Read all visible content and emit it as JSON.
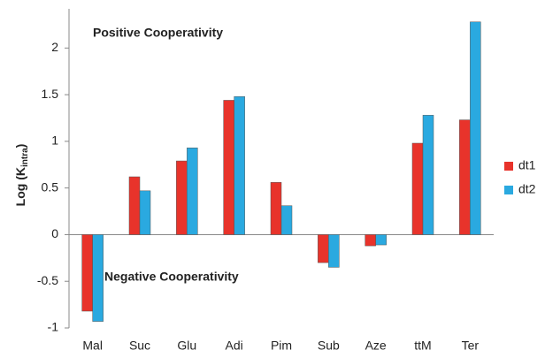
{
  "chart_data": {
    "type": "bar",
    "ylabel_parts": [
      "Log (K",
      "intra",
      ")"
    ],
    "annotations": [
      "Positive Cooperativity",
      "Negative Cooperativity"
    ],
    "categories": [
      "Mal",
      "Suc",
      "Glu",
      "Adi",
      "Pim",
      "Sub",
      "Aze",
      "ttM",
      "Ter"
    ],
    "series": [
      {
        "name": "dt1",
        "color": "#e8332b",
        "values": [
          -0.82,
          0.62,
          0.79,
          1.44,
          0.56,
          -0.3,
          -0.12,
          0.98,
          1.23
        ]
      },
      {
        "name": "dt2",
        "color": "#2aa9e0",
        "values": [
          -0.93,
          0.47,
          0.93,
          1.48,
          0.31,
          -0.35,
          -0.11,
          1.28,
          2.28
        ]
      }
    ],
    "ylim": [
      -1,
      2.42
    ],
    "yticks": [
      -1,
      -0.5,
      0,
      0.5,
      1,
      1.5,
      2
    ],
    "grid": false,
    "legend": "right"
  }
}
